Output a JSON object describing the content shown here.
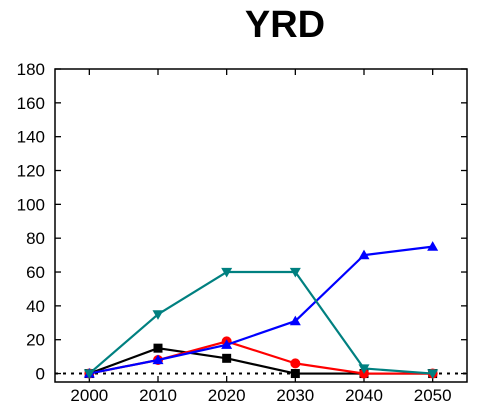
{
  "chart_data": {
    "type": "line",
    "title": "YRD",
    "xlabel": "",
    "ylabel": "",
    "x": [
      2000,
      2010,
      2020,
      2030,
      2040,
      2050
    ],
    "xlim": [
      1995,
      2055
    ],
    "ylim": [
      -5,
      180
    ],
    "yticks": [
      0,
      20,
      40,
      60,
      80,
      100,
      120,
      140,
      160,
      180
    ],
    "xticks": [
      2000,
      2010,
      2020,
      2030,
      2040,
      2050
    ],
    "reference_line": {
      "y": 0,
      "style": "dotted"
    },
    "grid": false,
    "series": [
      {
        "color": "#000000",
        "marker": "square",
        "values": [
          0,
          15,
          9,
          0,
          0,
          0
        ]
      },
      {
        "color": "#ff0000",
        "marker": "circle",
        "values": [
          0,
          8,
          19,
          6,
          0,
          0
        ]
      },
      {
        "color": "#0000ff",
        "marker": "triangle-up",
        "values": [
          0,
          8,
          17,
          31,
          70,
          75
        ]
      },
      {
        "color": "#008080",
        "marker": "triangle-down",
        "values": [
          0,
          35,
          60,
          60,
          3,
          0
        ]
      }
    ]
  }
}
